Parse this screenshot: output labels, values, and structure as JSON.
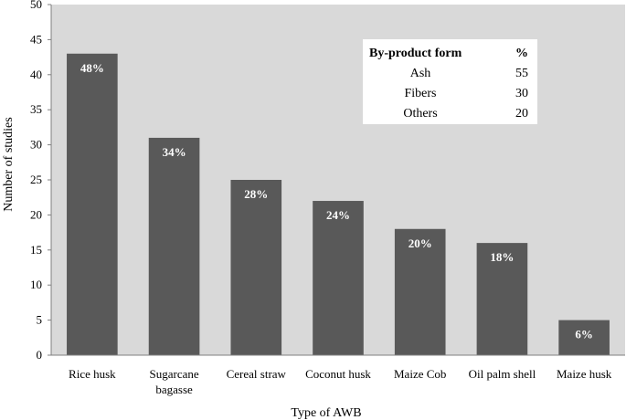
{
  "colors": {
    "plot_bg": "#d9d9d9",
    "bar": "#595959",
    "table_bg": "#ffffff",
    "axis": "#808080"
  },
  "chart_data": {
    "type": "bar",
    "categories": [
      [
        "Rice husk"
      ],
      [
        "Sugarcane",
        "bagasse"
      ],
      [
        "Cereal straw"
      ],
      [
        "Coconut husk"
      ],
      [
        "Maize Cob"
      ],
      [
        "Oil palm shell"
      ],
      [
        "Maize  husk"
      ]
    ],
    "values": [
      43,
      31,
      25,
      22,
      18,
      16,
      5
    ],
    "data_labels": [
      "48%",
      "34%",
      "28%",
      "24%",
      "20%",
      "18%",
      "6%"
    ],
    "xlabel": "Type of AWB",
    "ylabel": "Number of studies",
    "ylim": [
      0,
      50
    ],
    "yticks": [
      0,
      5,
      10,
      15,
      20,
      25,
      30,
      35,
      40,
      45,
      50
    ],
    "grid": false,
    "inset_table": {
      "headers": [
        "By-product form",
        "%"
      ],
      "rows": [
        [
          "Ash",
          "55"
        ],
        [
          "Fibers",
          "30"
        ],
        [
          "Others",
          "20"
        ]
      ]
    }
  }
}
